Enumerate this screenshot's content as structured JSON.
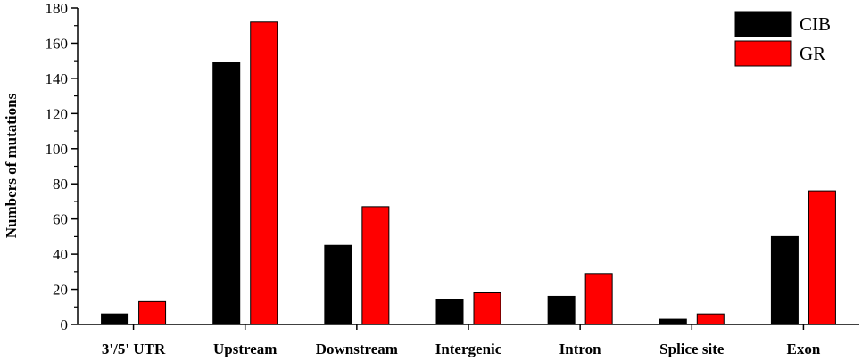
{
  "chart_data": {
    "type": "bar",
    "title": "",
    "xlabel": "",
    "ylabel": "Numbers of mutations",
    "ylim": [
      0,
      180
    ],
    "yticks": [
      0,
      20,
      40,
      60,
      80,
      100,
      120,
      140,
      160,
      180
    ],
    "grid": false,
    "legend_position": "top-right",
    "categories": [
      "3'/5' UTR",
      "Upstream",
      "Downstream",
      "Intergenic",
      "Intron",
      "Splice site",
      "Exon"
    ],
    "series": [
      {
        "name": "CIB",
        "color": "#000000",
        "values": [
          6,
          149,
          45,
          14,
          16,
          3,
          50
        ]
      },
      {
        "name": "GR",
        "color": "#ff0000",
        "values": [
          13,
          172,
          67,
          18,
          29,
          6,
          76
        ]
      }
    ]
  }
}
